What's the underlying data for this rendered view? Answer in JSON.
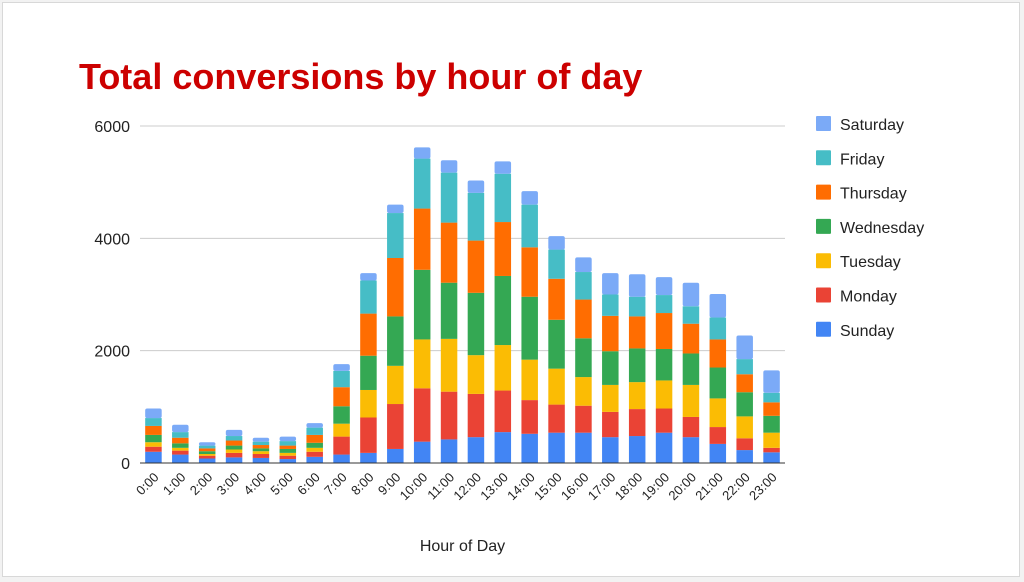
{
  "colors": {
    "title": "#cc0000",
    "gridline": "#cccccc",
    "baseline": "#333333"
  },
  "chart_data": {
    "type": "bar",
    "stacked": true,
    "title": "Total conversions by hour of day",
    "xlabel": "Hour of Day",
    "ylabel": "",
    "ylim": [
      0,
      6000
    ],
    "yticks": [
      0,
      2000,
      4000,
      6000
    ],
    "grid": true,
    "legend_position": "right",
    "categories": [
      "0:00",
      "1:00",
      "2:00",
      "3:00",
      "4:00",
      "5:00",
      "6:00",
      "7:00",
      "8:00",
      "9:00",
      "10:00",
      "11:00",
      "12:00",
      "13:00",
      "14:00",
      "15:00",
      "16:00",
      "17:00",
      "18:00",
      "19:00",
      "20:00",
      "21:00",
      "22:00",
      "23:00"
    ],
    "series": [
      {
        "name": "Sunday",
        "color": "#4285f4",
        "values": [
          200,
          150,
          80,
          100,
          90,
          70,
          110,
          150,
          180,
          250,
          380,
          420,
          460,
          550,
          520,
          540,
          540,
          460,
          480,
          540,
          460,
          340,
          230,
          190
        ]
      },
      {
        "name": "Monday",
        "color": "#ea4335",
        "values": [
          90,
          70,
          50,
          80,
          70,
          60,
          90,
          320,
          630,
          800,
          950,
          850,
          770,
          740,
          600,
          500,
          480,
          450,
          480,
          430,
          360,
          300,
          210,
          80
        ]
      },
      {
        "name": "Tuesday",
        "color": "#fbbc04",
        "values": [
          80,
          50,
          30,
          60,
          50,
          50,
          70,
          230,
          490,
          680,
          870,
          940,
          690,
          810,
          720,
          640,
          510,
          480,
          480,
          500,
          570,
          510,
          390,
          270
        ]
      },
      {
        "name": "Wednesday",
        "color": "#34a853",
        "values": [
          130,
          80,
          50,
          70,
          50,
          70,
          90,
          310,
          610,
          880,
          1240,
          1000,
          1110,
          1230,
          1120,
          870,
          690,
          600,
          600,
          560,
          560,
          550,
          430,
          300
        ]
      },
      {
        "name": "Thursday",
        "color": "#ff6d01",
        "values": [
          160,
          100,
          50,
          90,
          60,
          60,
          140,
          340,
          750,
          1040,
          1090,
          1070,
          930,
          960,
          880,
          730,
          690,
          630,
          570,
          640,
          530,
          500,
          320,
          240
        ]
      },
      {
        "name": "Friday",
        "color": "#46bdc6",
        "values": [
          140,
          100,
          50,
          80,
          60,
          80,
          130,
          290,
          590,
          800,
          890,
          890,
          850,
          860,
          760,
          520,
          490,
          380,
          350,
          320,
          310,
          390,
          270,
          170
        ]
      },
      {
        "name": "Saturday",
        "color": "#7baaf7",
        "values": [
          170,
          130,
          60,
          110,
          70,
          80,
          80,
          120,
          130,
          150,
          200,
          220,
          220,
          220,
          240,
          240,
          260,
          380,
          400,
          320,
          420,
          420,
          420,
          400
        ]
      }
    ]
  }
}
